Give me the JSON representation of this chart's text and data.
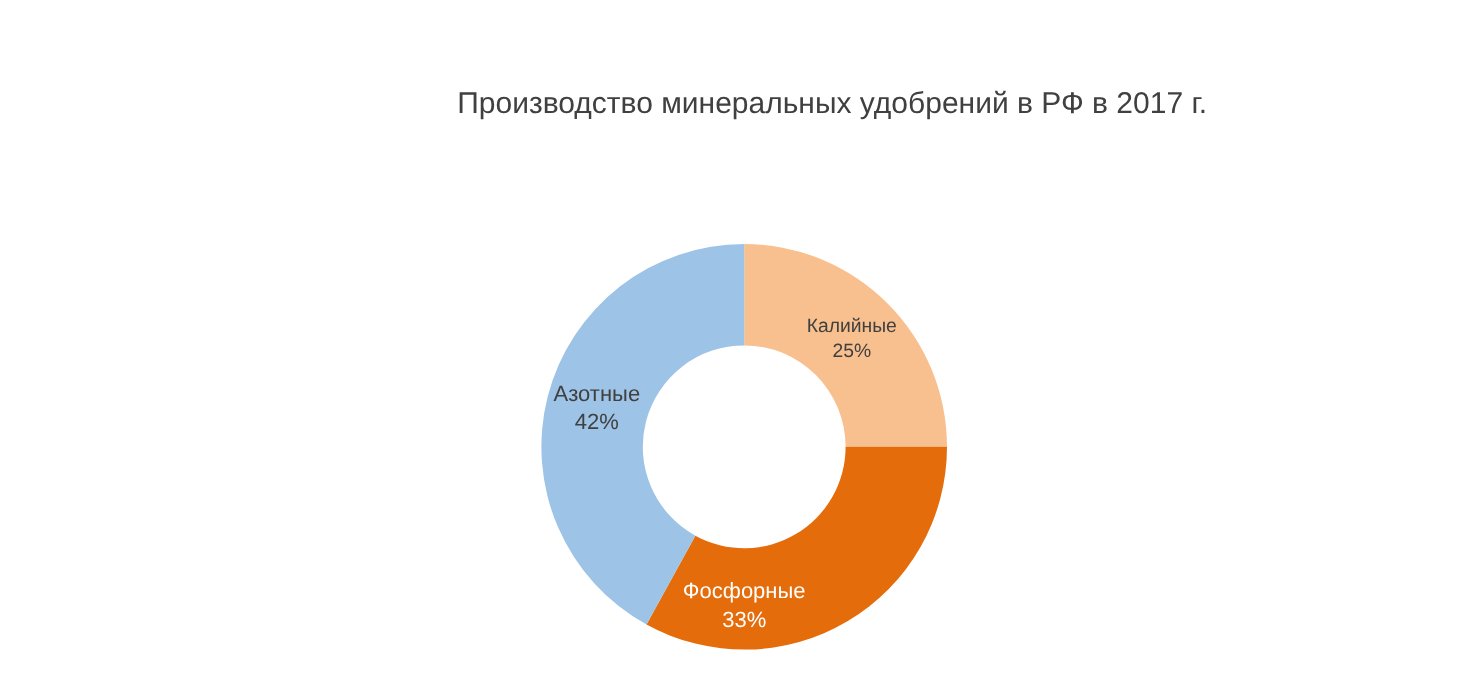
{
  "chart_data": {
    "type": "donut",
    "title": "Производство минеральных удобрений в РФ в 2017 г.",
    "categories": [
      "Калийные",
      "Фосфорные",
      "Азотные"
    ],
    "values": [
      25,
      33,
      42
    ],
    "value_labels": [
      "25%",
      "33%",
      "42%"
    ],
    "colors": [
      "#f9c08f",
      "#e46c0a",
      "#9dc3e6"
    ],
    "legend": false
  }
}
